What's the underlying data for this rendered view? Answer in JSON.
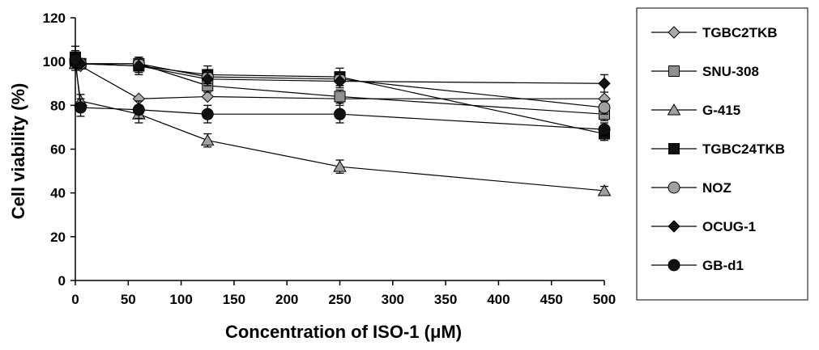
{
  "chart_data": {
    "type": "line",
    "xlabel": "Concentration of ISO-1 (μM)",
    "ylabel": "Cell viability  (%)",
    "x": [
      0,
      5,
      60,
      125,
      250,
      500
    ],
    "xlim": [
      0,
      500
    ],
    "ylim": [
      0,
      120
    ],
    "xticks": [
      "0",
      "50",
      "100",
      "150",
      "200",
      "250",
      "300",
      "350",
      "400",
      "450",
      "500"
    ],
    "yticks": [
      "0",
      "20",
      "40",
      "60",
      "80",
      "100",
      "120"
    ],
    "grid": false,
    "legend_position": "right",
    "series": [
      {
        "name": "TGBC2TKB",
        "marker": "diamond",
        "fill": "#a8a8a8",
        "values": [
          101,
          98,
          83,
          84,
          83,
          83
        ],
        "errors": [
          3,
          0,
          0,
          0,
          0,
          0
        ]
      },
      {
        "name": "SNU-308",
        "marker": "square",
        "fill": "#909090",
        "values": [
          100,
          99,
          99,
          89,
          84,
          76
        ],
        "errors": [
          3,
          0,
          3,
          3,
          3,
          3
        ]
      },
      {
        "name": "G-415",
        "marker": "triangle",
        "fill": "#a0a0a0",
        "values": [
          99,
          82,
          76,
          64,
          52,
          41
        ],
        "errors": [
          3,
          3,
          4,
          3,
          3,
          2
        ]
      },
      {
        "name": "TGBC24TKB",
        "marker": "square",
        "fill": "#111111",
        "values": [
          102,
          99,
          98,
          94,
          93,
          67
        ],
        "errors": [
          5,
          0,
          4,
          4,
          4,
          3
        ]
      },
      {
        "name": "NOZ",
        "marker": "circle",
        "fill": "#a0a0a0",
        "values": [
          100,
          99,
          99,
          93,
          92,
          79
        ],
        "errors": [
          3,
          0,
          3,
          3,
          3,
          3
        ]
      },
      {
        "name": "OCUG-1",
        "marker": "diamond",
        "fill": "#111111",
        "values": [
          99,
          99,
          98,
          92,
          91,
          90
        ],
        "errors": [
          2,
          0,
          3,
          3,
          3,
          4
        ]
      },
      {
        "name": "GB-d1",
        "marker": "circle",
        "fill": "#111111",
        "values": [
          101,
          79,
          78,
          76,
          76,
          69
        ],
        "errors": [
          4,
          4,
          4,
          4,
          4,
          3
        ]
      }
    ]
  }
}
